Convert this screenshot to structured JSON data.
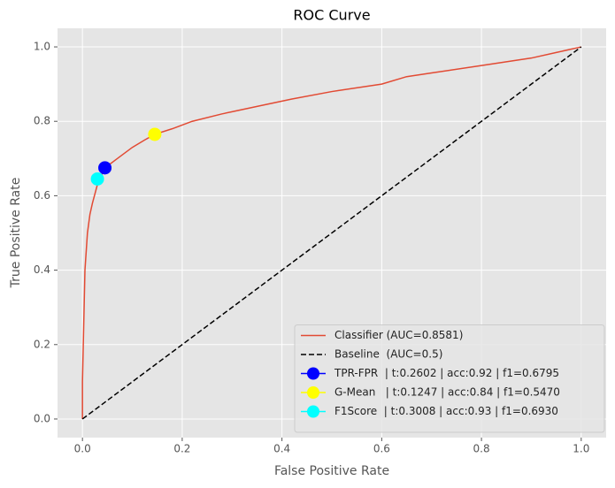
{
  "chart_data": {
    "type": "line",
    "title": "ROC Curve",
    "xlabel": "False Positive Rate",
    "ylabel": "True Positive Rate",
    "xlim": [
      -0.05,
      1.05
    ],
    "ylim": [
      -0.05,
      1.05
    ],
    "xticks": [
      {
        "value": 0,
        "label": "0.0"
      },
      0.2,
      0.4,
      0.6,
      0.8,
      {
        "value": 1,
        "label": "1.0"
      }
    ],
    "yticks": [
      {
        "value": 0,
        "label": "0.0"
      },
      0.2,
      0.4,
      0.6,
      0.8,
      {
        "value": 1,
        "label": "1.0"
      }
    ],
    "grid": true,
    "legend": "lower right",
    "series": [
      {
        "name": "Classifier (AUC=0.8581)",
        "color": "#e24a33",
        "linestyle": "solid",
        "x": [
          0,
          0,
          0.003,
          0.005,
          0.01,
          0.015,
          0.02,
          0.03,
          0.045,
          0.07,
          0.1,
          0.125,
          0.145,
          0.18,
          0.22,
          0.28,
          0.35,
          0.42,
          0.5,
          0.6,
          0.65,
          0.7,
          0.8,
          0.85,
          0.9,
          0.95,
          1
        ],
        "values": [
          0,
          0.1,
          0.28,
          0.4,
          0.5,
          0.55,
          0.58,
          0.63,
          0.675,
          0.7,
          0.73,
          0.75,
          0.765,
          0.78,
          0.8,
          0.82,
          0.84,
          0.86,
          0.88,
          0.9,
          0.92,
          0.93,
          0.95,
          0.96,
          0.97,
          0.985,
          1
        ]
      },
      {
        "name": "Baseline  (AUC=0.5)",
        "color": "#000000",
        "linestyle": "dashed",
        "x": [
          0,
          1
        ],
        "values": [
          0,
          1
        ]
      },
      {
        "name": "TPR-FPR  | t:0.2602 | acc:0.92 | f1=0.6795",
        "color": "#0000ff",
        "marker": "o",
        "x": [
          0.045
        ],
        "values": [
          0.675
        ]
      },
      {
        "name": "G-Mean   | t:0.1247 | acc:0.84 | f1=0.5470",
        "color": "#ffff00",
        "marker": "o",
        "x": [
          0.145
        ],
        "values": [
          0.765
        ]
      },
      {
        "name": "F1Score  | t:0.3008 | acc:0.93 | f1=0.6930",
        "color": "#00ffff",
        "marker": "o",
        "x": [
          0.03
        ],
        "values": [
          0.645
        ]
      }
    ]
  }
}
